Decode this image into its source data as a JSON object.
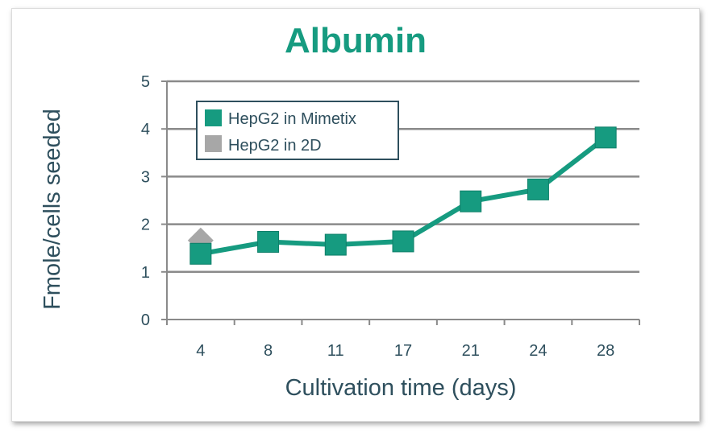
{
  "chart_data": {
    "type": "line",
    "title": "Albumin",
    "xlabel": "Cultivation time (days)",
    "ylabel": "Fmole/cells seeded",
    "categories": [
      "4",
      "8",
      "11",
      "17",
      "21",
      "24",
      "28"
    ],
    "ylim": [
      0,
      5
    ],
    "yticks": [
      "0",
      "1",
      "2",
      "3",
      "4",
      "5"
    ],
    "grid": true,
    "legend_position": "top-left",
    "series": [
      {
        "name": "HepG2 in Mimetix",
        "values": [
          1.38,
          1.63,
          1.57,
          1.64,
          2.48,
          2.73,
          3.82
        ],
        "color": "#169b80",
        "marker": "square"
      },
      {
        "name": "HepG2 in 2D",
        "values": [
          1.66,
          null,
          null,
          null,
          null,
          null,
          null
        ],
        "color": "#a7a7a7",
        "marker": "diamond"
      }
    ],
    "colors": {
      "title": "#169b80",
      "text": "#2e4f5d",
      "grid": "#8a8a8a",
      "legend_border": "#2e4f5d"
    }
  }
}
